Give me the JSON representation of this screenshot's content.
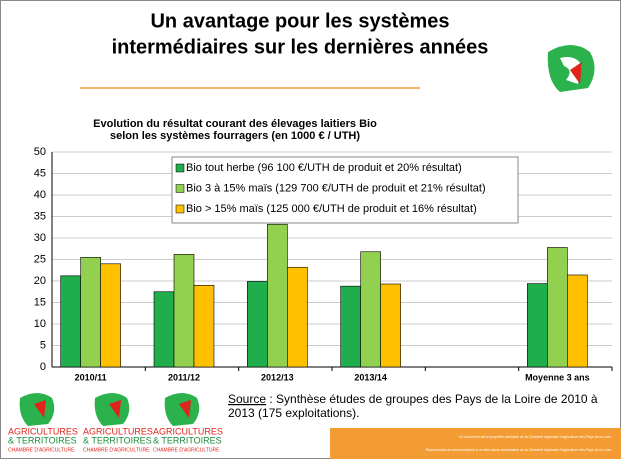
{
  "header": {
    "title": [
      "Un avantage pour les systèmes",
      "intermédiaires sur les dernières années"
    ]
  },
  "chart_data": {
    "type": "bar",
    "title": [
      "Evolution du résultat courant des élevages laitiers Bio",
      "selon les systèmes fourragers (en 1000 € / UTH)"
    ],
    "categories": [
      "2010/11",
      "2011/12",
      "2012/13",
      "2013/14",
      null,
      "Moyenne 3 ans"
    ],
    "series": [
      {
        "name": "Bio tout herbe (96 100 €/UTH de produit et 20% résultat)",
        "color": "#1fae4b",
        "values": [
          21.2,
          17.5,
          19.9,
          18.8,
          null,
          19.4
        ]
      },
      {
        "name": "Bio 3 à 15% maïs (129 700 €/UTH de produit et 21% résultat)",
        "color": "#92d050",
        "values": [
          25.5,
          26.2,
          33.2,
          26.8,
          null,
          27.8
        ]
      },
      {
        "name": "Bio > 15% maïs (125 000 €/UTH de produit et 16% résultat)",
        "color": "#ffc000",
        "values": [
          24,
          19,
          23.2,
          19.3,
          null,
          21.4
        ]
      }
    ],
    "ylim": [
      0,
      50
    ],
    "yticks": [
      0,
      5,
      10,
      15,
      20,
      25,
      30,
      35,
      40,
      45,
      50
    ],
    "grid": true
  },
  "source": {
    "label": "Source",
    "lines": [
      " : Synthèse études de groupes des Pays de la Loire de 2010 à",
      "2013 (175 exploitations)."
    ]
  },
  "logo": {
    "lines": [
      "AGRICULTURES",
      "& TERRITOIRES",
      "CHAMBRE D'AGRICULTURE"
    ]
  },
  "footer": {
    "lines": [
      "Ce document est la propriété exclusive de la Chambre régionale d'agriculture des Pays de la Loire.",
      "Reproduction et communication à un tiers après autorisation de la Chambre régionale d'agriculture des Pays de la Loire."
    ]
  }
}
